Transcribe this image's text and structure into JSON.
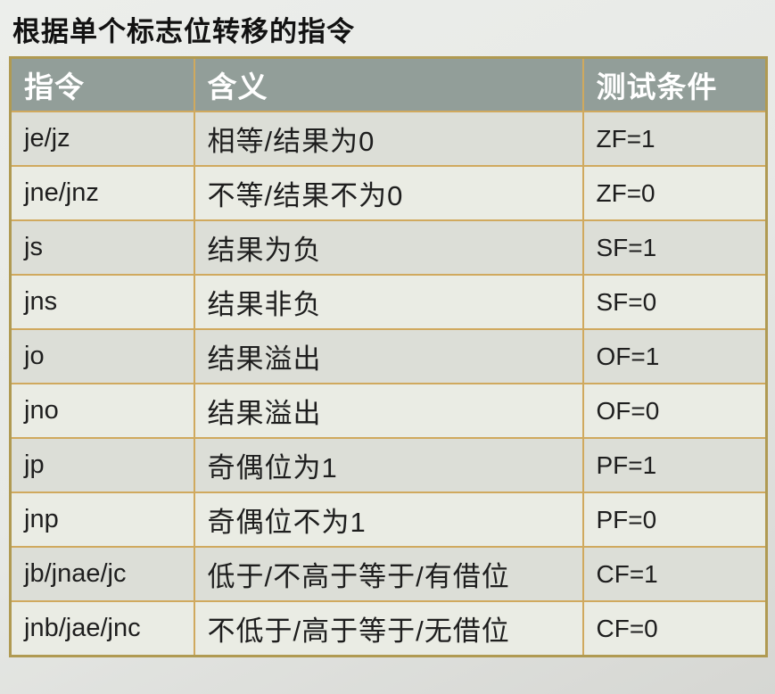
{
  "page": {
    "title": "根据单个标志位转移的指令"
  },
  "table": {
    "columns": [
      "指令",
      "含义",
      "测试条件"
    ],
    "rows": [
      {
        "instruction": "je/jz",
        "meaning": "相等/结果为0",
        "condition": "ZF=1"
      },
      {
        "instruction": "jne/jnz",
        "meaning": "不等/结果不为0",
        "condition": "ZF=0"
      },
      {
        "instruction": "js",
        "meaning": "结果为负",
        "condition": "SF=1"
      },
      {
        "instruction": "jns",
        "meaning": "结果非负",
        "condition": "SF=0"
      },
      {
        "instruction": "jo",
        "meaning": "结果溢出",
        "condition": "OF=1"
      },
      {
        "instruction": "jno",
        "meaning": "结果溢出",
        "condition": "OF=0"
      },
      {
        "instruction": "jp",
        "meaning": "奇偶位为1",
        "condition": "PF=1"
      },
      {
        "instruction": "jnp",
        "meaning": "奇偶位不为1",
        "condition": "PF=0"
      },
      {
        "instruction": "jb/jnae/jc",
        "meaning": "低于/不高于等于/有借位",
        "condition": "CF=1"
      },
      {
        "instruction": "jnb/jae/jnc",
        "meaning": "不低于/高于等于/无借位",
        "condition": "CF=0"
      }
    ],
    "colors": {
      "header_bg": "#929e99",
      "header_text": "#ffffff",
      "row_odd_bg": "#dcded7",
      "row_even_bg": "#eaece4",
      "border": "#d0a95e",
      "border_outer": "#b09a52",
      "cell_text": "#1e1e1e"
    }
  }
}
